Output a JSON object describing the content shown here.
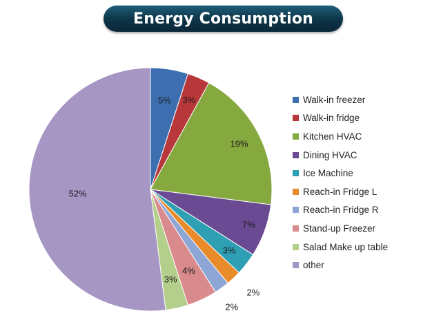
{
  "title": "Energy Consumption",
  "chart_data": {
    "type": "pie",
    "title": "Energy Consumption",
    "legend_position": "right",
    "slices": [
      {
        "name": "Walk-in freezer",
        "value": 5,
        "label": "5%",
        "color": "#3d6fb0"
      },
      {
        "name": "Walk-in fridge",
        "value": 3,
        "label": "3%",
        "color": "#b8373a"
      },
      {
        "name": "Kitchen HVAC",
        "value": 19,
        "label": "19%",
        "color": "#86a93f"
      },
      {
        "name": "Dining HVAC",
        "value": 7,
        "label": "7%",
        "color": "#6a4a93"
      },
      {
        "name": "Ice Machine",
        "value": 3,
        "label": "3%",
        "color": "#2f9fb3"
      },
      {
        "name": "Reach-in Fridge L",
        "value": 2,
        "label": "2%",
        "color": "#e98a2b"
      },
      {
        "name": "Reach-in Fridge R",
        "value": 2,
        "label": "2%",
        "color": "#8ea6d5"
      },
      {
        "name": "Stand-up Freezer",
        "value": 4,
        "label": "4%",
        "color": "#d98a8c"
      },
      {
        "name": "Salad Make up table",
        "value": 3,
        "label": "3%",
        "color": "#b4cf8b"
      },
      {
        "name": "other",
        "value": 52,
        "label": "52%",
        "color": "#a696c4"
      }
    ]
  }
}
